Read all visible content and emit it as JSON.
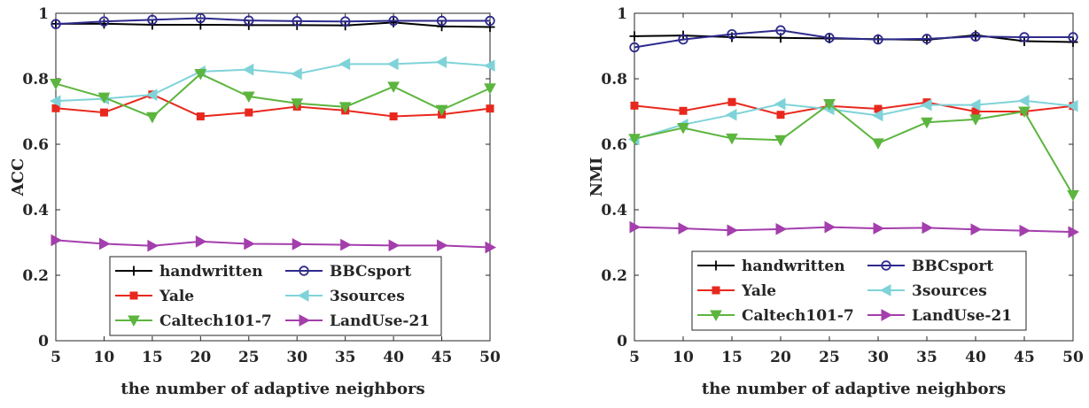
{
  "chart_data": [
    {
      "type": "line",
      "xlabel": "the number of adaptive neighbors",
      "ylabel": "ACC",
      "xlim": [
        5,
        50
      ],
      "ylim": [
        0,
        1
      ],
      "xticks": [
        "5",
        "10",
        "15",
        "20",
        "25",
        "30",
        "35",
        "40",
        "45",
        "50"
      ],
      "yticks": [
        "0",
        "0.2",
        "0.4",
        "0.6",
        "0.8",
        "1"
      ],
      "grid": false,
      "legend_position": "bottom-center",
      "x": [
        5,
        10,
        15,
        20,
        25,
        30,
        35,
        40,
        45,
        50
      ],
      "series": [
        {
          "name": "handwritten",
          "color": "#000000",
          "marker": "plus",
          "values": [
            0.968,
            0.968,
            0.965,
            0.965,
            0.964,
            0.964,
            0.963,
            0.972,
            0.96,
            0.958
          ]
        },
        {
          "name": "BBCsport",
          "color": "#2e2a8c",
          "marker": "circle",
          "values": [
            0.967,
            0.975,
            0.98,
            0.985,
            0.978,
            0.976,
            0.975,
            0.977,
            0.977,
            0.977
          ]
        },
        {
          "name": "Yale",
          "color": "#e8281e",
          "marker": "square",
          "values": [
            0.71,
            0.697,
            0.752,
            0.685,
            0.697,
            0.715,
            0.703,
            0.685,
            0.691,
            0.709
          ]
        },
        {
          "name": "3sources",
          "color": "#7fd3d8",
          "marker": "triangle-left",
          "values": [
            0.732,
            0.739,
            0.751,
            0.822,
            0.828,
            0.815,
            0.845,
            0.845,
            0.851,
            0.84
          ]
        },
        {
          "name": "Caltech101-7",
          "color": "#5cb53e",
          "marker": "triangle-down",
          "values": [
            0.785,
            0.743,
            0.683,
            0.815,
            0.746,
            0.725,
            0.714,
            0.776,
            0.705,
            0.771
          ]
        },
        {
          "name": "LandUse-21",
          "color": "#a43eac",
          "marker": "triangle-right",
          "values": [
            0.307,
            0.296,
            0.29,
            0.303,
            0.296,
            0.295,
            0.293,
            0.291,
            0.291,
            0.285
          ]
        }
      ]
    },
    {
      "type": "line",
      "xlabel": "the number of adaptive neighbors",
      "ylabel": "NMI",
      "xlim": [
        5,
        50
      ],
      "ylim": [
        0,
        1
      ],
      "xticks": [
        "5",
        "10",
        "15",
        "20",
        "25",
        "30",
        "35",
        "40",
        "45",
        "50"
      ],
      "yticks": [
        "0",
        "0.2",
        "0.4",
        "0.6",
        "0.8",
        "1"
      ],
      "grid": false,
      "legend_position": "bottom-center",
      "x": [
        5,
        10,
        15,
        20,
        25,
        30,
        35,
        40,
        45,
        50
      ],
      "series": [
        {
          "name": "handwritten",
          "color": "#000000",
          "marker": "plus",
          "values": [
            0.93,
            0.932,
            0.927,
            0.925,
            0.923,
            0.921,
            0.919,
            0.933,
            0.915,
            0.912
          ]
        },
        {
          "name": "BBCsport",
          "color": "#2e2a8c",
          "marker": "circle",
          "values": [
            0.896,
            0.92,
            0.936,
            0.948,
            0.925,
            0.92,
            0.922,
            0.929,
            0.927,
            0.927
          ]
        },
        {
          "name": "Yale",
          "color": "#e8281e",
          "marker": "square",
          "values": [
            0.718,
            0.702,
            0.729,
            0.69,
            0.717,
            0.708,
            0.728,
            0.7,
            0.7,
            0.717
          ]
        },
        {
          "name": "3sources",
          "color": "#7fd3d8",
          "marker": "triangle-left",
          "values": [
            0.615,
            0.66,
            0.69,
            0.723,
            0.707,
            0.688,
            0.72,
            0.72,
            0.733,
            0.717
          ]
        },
        {
          "name": "Caltech101-7",
          "color": "#5cb53e",
          "marker": "triangle-down",
          "values": [
            0.617,
            0.65,
            0.618,
            0.613,
            0.723,
            0.603,
            0.667,
            0.676,
            0.7,
            0.445
          ]
        },
        {
          "name": "LandUse-21",
          "color": "#a43eac",
          "marker": "triangle-right",
          "values": [
            0.347,
            0.343,
            0.337,
            0.341,
            0.347,
            0.343,
            0.345,
            0.34,
            0.336,
            0.332
          ]
        }
      ]
    }
  ]
}
